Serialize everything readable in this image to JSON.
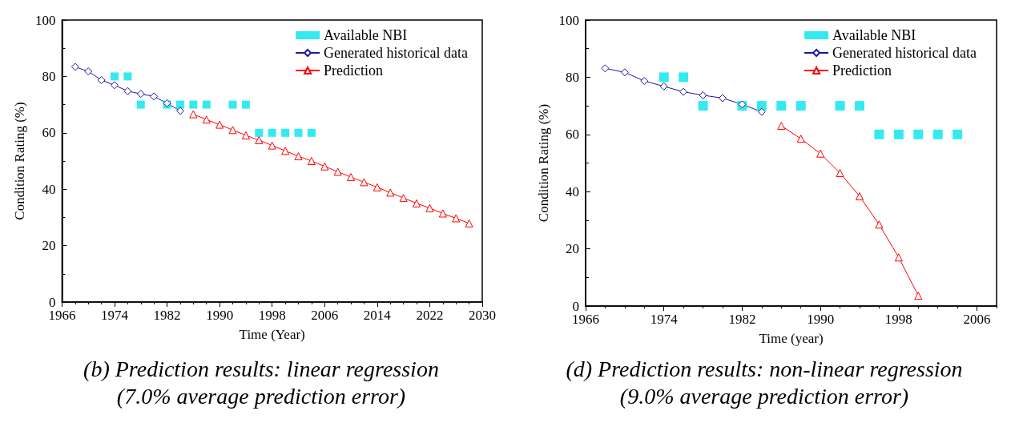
{
  "chart_data": [
    {
      "type": "line",
      "xlabel": "Time (Year)",
      "ylabel": "Condition Rating (%)",
      "xlim": [
        1966,
        2030
      ],
      "xticks": [
        1966,
        1974,
        1982,
        1990,
        1998,
        2006,
        2014,
        2022,
        2030
      ],
      "ylim": [
        0,
        100
      ],
      "yticks": [
        0,
        20,
        40,
        60,
        80,
        100
      ],
      "grid": false,
      "legend": "top right",
      "annotations": [
        "(b) Prediction results: linear regression",
        "(7.0% average prediction error)"
      ],
      "series": [
        {
          "name": "Available NBI",
          "type": "scatter",
          "marker": "square",
          "color": "#00e5ee",
          "x": [
            1974,
            1976,
            1978,
            1982,
            1984,
            1986,
            1988,
            1992,
            1994,
            1996,
            1998,
            2000,
            2002,
            2004
          ],
          "values": [
            80,
            80,
            70,
            70,
            70,
            70,
            70,
            70,
            70,
            60,
            60,
            60,
            60,
            60
          ]
        },
        {
          "name": "Generated historical data",
          "type": "line",
          "marker": "diamond",
          "color": "#1a1a9c",
          "x": [
            1968,
            1970,
            1972,
            1974,
            1976,
            1978,
            1980,
            1982,
            1984
          ],
          "values": [
            83.4,
            81.8,
            78.7,
            76.9,
            74.8,
            73.8,
            72.9,
            70.5,
            67.8
          ]
        },
        {
          "name": "Prediction",
          "type": "line",
          "marker": "triangle",
          "color": "#ff0000",
          "x": [
            1986,
            1988,
            1990,
            1992,
            1994,
            1996,
            1998,
            2000,
            2002,
            2004,
            2006,
            2008,
            2010,
            2012,
            2014,
            2016,
            2018,
            2020,
            2022,
            2024,
            2026,
            2028
          ],
          "values": [
            66.6,
            64.7,
            62.9,
            61.0,
            59.1,
            57.4,
            55.5,
            53.6,
            51.7,
            50.0,
            48.1,
            46.2,
            44.3,
            42.5,
            40.7,
            38.8,
            36.9,
            35.0,
            33.3,
            31.4,
            29.7,
            27.9
          ]
        }
      ]
    },
    {
      "type": "line",
      "xlabel": "Time (year)",
      "ylabel": "Condition Rating (%)",
      "xlim": [
        1966,
        2008
      ],
      "xticks": [
        1966,
        1974,
        1982,
        1990,
        1998,
        2006
      ],
      "ylim": [
        0,
        100
      ],
      "yticks": [
        0,
        20,
        40,
        60,
        80,
        100
      ],
      "grid": false,
      "legend": "top right",
      "annotations": [
        "(d) Prediction results: non-linear regression",
        "(9.0% average prediction error)"
      ],
      "series": [
        {
          "name": "Available NBI",
          "type": "scatter",
          "marker": "square",
          "color": "#00e5ee",
          "x": [
            1974,
            1976,
            1978,
            1982,
            1984,
            1986,
            1988,
            1992,
            1994,
            1996,
            1998,
            2000,
            2002,
            2004
          ],
          "values": [
            80,
            80,
            70,
            70,
            70,
            70,
            70,
            70,
            70,
            60,
            60,
            60,
            60,
            60
          ]
        },
        {
          "name": "Generated historical data",
          "type": "line",
          "marker": "diamond",
          "color": "#1a1a9c",
          "x": [
            1968,
            1970,
            1972,
            1974,
            1976,
            1978,
            1980,
            1982,
            1984
          ],
          "values": [
            83.1,
            81.7,
            78.7,
            76.8,
            74.9,
            73.7,
            72.7,
            70.5,
            67.9
          ]
        },
        {
          "name": "Prediction",
          "type": "line",
          "marker": "triangle",
          "color": "#ff0000",
          "x": [
            1986,
            1988,
            1990,
            1992,
            1994,
            1996,
            1998,
            2000
          ],
          "values": [
            63.0,
            58.5,
            53.3,
            46.5,
            38.4,
            28.5,
            17.0,
            3.6
          ]
        }
      ]
    }
  ]
}
